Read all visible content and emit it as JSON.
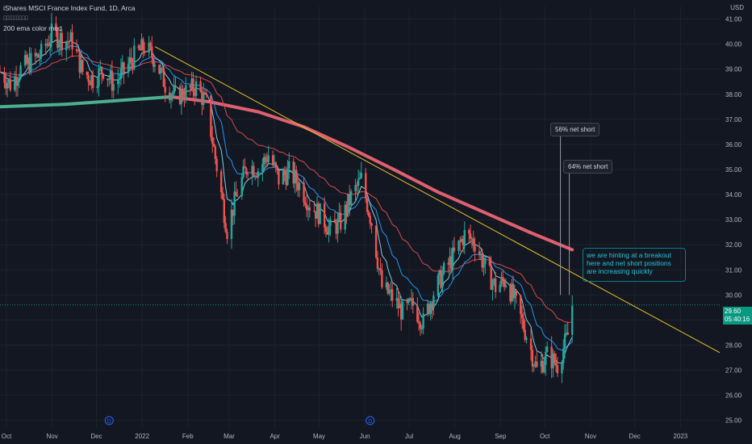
{
  "header": {
    "title": "iShares MSCI France Index Fund, 1D, Arca",
    "placeholder_line": "▯▯▯▯▯▯▯▯",
    "indicator": "200 ema color mod"
  },
  "currency": "USD",
  "last_price_tag": {
    "price": "29.60",
    "countdown": "05:40:16"
  },
  "annotations": {
    "short_56": "56% net short",
    "short_64": "64% net short",
    "breakout_note": "we are hinting at a breakout here and net short positions are increasing quickly",
    "dividend_marker": "D"
  },
  "colors": {
    "background": "#131722",
    "up": "#26a69a",
    "down": "#ef5350",
    "ema_slow_green": "#4caf8f",
    "ema_slow_red": "#e06070",
    "ma_mid": "#d64a4a",
    "ma_fast": "#2196f3",
    "ma_fastest": "#7fd0e0",
    "trendline": "#e6c229"
  },
  "chart_data": {
    "type": "candlestick",
    "y_axis": {
      "ticks": [
        "41.00",
        "40.00",
        "39.00",
        "38.00",
        "37.00",
        "36.00",
        "35.00",
        "34.00",
        "33.00",
        "32.00",
        "31.00",
        "30.00",
        "29.00",
        "28.00",
        "27.00",
        "26.00",
        "25.00"
      ],
      "range": [
        24.7,
        41.5
      ]
    },
    "x_axis": {
      "ticks": [
        "Oct",
        "Nov",
        "Dec",
        "2022",
        "Feb",
        "Mar",
        "Apr",
        "May",
        "Jun",
        "Jul",
        "Aug",
        "Sep",
        "Oct",
        "Nov",
        "Dec",
        "2023"
      ]
    },
    "x_range": [
      "2021-10-01",
      "2023-02-01"
    ],
    "series_close": [
      [
        "2021-10-01",
        38.9
      ],
      [
        "2021-10-08",
        38.4
      ],
      [
        "2021-10-15",
        39.0
      ],
      [
        "2021-10-22",
        39.3
      ],
      [
        "2021-10-29",
        39.6
      ],
      [
        "2021-11-05",
        40.4
      ],
      [
        "2021-11-12",
        40.2
      ],
      [
        "2021-11-19",
        40.1
      ],
      [
        "2021-11-26",
        38.9
      ],
      [
        "2021-12-03",
        38.6
      ],
      [
        "2021-12-10",
        39.0
      ],
      [
        "2021-12-17",
        38.4
      ],
      [
        "2021-12-24",
        38.9
      ],
      [
        "2021-12-31",
        39.5
      ],
      [
        "2022-01-07",
        39.9
      ],
      [
        "2022-01-14",
        39.4
      ],
      [
        "2022-01-21",
        38.4
      ],
      [
        "2022-01-28",
        37.9
      ],
      [
        "2022-02-04",
        38.1
      ],
      [
        "2022-02-11",
        38.3
      ],
      [
        "2022-02-18",
        37.6
      ],
      [
        "2022-02-25",
        35.1
      ],
      [
        "2022-03-04",
        32.6
      ],
      [
        "2022-03-11",
        34.1
      ],
      [
        "2022-03-18",
        35.2
      ],
      [
        "2022-03-25",
        35.0
      ],
      [
        "2022-04-01",
        35.6
      ],
      [
        "2022-04-08",
        34.6
      ],
      [
        "2022-04-15",
        34.9
      ],
      [
        "2022-04-22",
        34.4
      ],
      [
        "2022-04-29",
        33.6
      ],
      [
        "2022-05-06",
        33.2
      ],
      [
        "2022-05-13",
        32.6
      ],
      [
        "2022-05-20",
        32.9
      ],
      [
        "2022-05-27",
        33.9
      ],
      [
        "2022-06-03",
        34.6
      ],
      [
        "2022-06-10",
        32.9
      ],
      [
        "2022-06-17",
        30.3
      ],
      [
        "2022-06-24",
        29.9
      ],
      [
        "2022-07-01",
        29.3
      ],
      [
        "2022-07-08",
        29.6
      ],
      [
        "2022-07-15",
        28.9
      ],
      [
        "2022-07-22",
        30.1
      ],
      [
        "2022-07-29",
        30.9
      ],
      [
        "2022-08-05",
        31.6
      ],
      [
        "2022-08-12",
        32.4
      ],
      [
        "2022-08-19",
        32.1
      ],
      [
        "2022-08-26",
        31.1
      ],
      [
        "2022-09-02",
        30.3
      ],
      [
        "2022-09-09",
        30.6
      ],
      [
        "2022-09-16",
        29.6
      ],
      [
        "2022-09-23",
        28.4
      ],
      [
        "2022-09-30",
        27.0
      ],
      [
        "2022-10-07",
        27.6
      ],
      [
        "2022-10-14",
        27.2
      ],
      [
        "2022-10-21",
        28.4
      ],
      [
        "2022-10-24",
        29.6
      ]
    ],
    "series": [
      {
        "name": "200 ema color mod",
        "values": [
          [
            "2021-10-01",
            37.5
          ],
          [
            "2021-11-15",
            37.6
          ],
          [
            "2022-01-01",
            37.8
          ],
          [
            "2022-01-25",
            37.9
          ],
          [
            "2022-02-20",
            37.7
          ],
          [
            "2022-03-25",
            37.3
          ],
          [
            "2022-04-25",
            36.7
          ],
          [
            "2022-05-25",
            35.9
          ],
          [
            "2022-06-25",
            35.0
          ],
          [
            "2022-07-25",
            34.1
          ],
          [
            "2022-08-25",
            33.3
          ],
          [
            "2022-09-25",
            32.5
          ],
          [
            "2022-10-24",
            31.8
          ]
        ]
      }
    ],
    "trendline": [
      [
        "2022-01-14",
        39.9
      ],
      [
        "2023-02-01",
        27.7
      ]
    ],
    "annotation_points": [
      {
        "label": "56% net short",
        "x": "2022-10-16",
        "y": 36.9
      },
      {
        "label": "64% net short",
        "x": "2022-10-22",
        "y": 35.7
      }
    ],
    "dividend_markers": [
      "2021-12-14",
      "2022-06-09"
    ],
    "last_price": 29.6
  }
}
